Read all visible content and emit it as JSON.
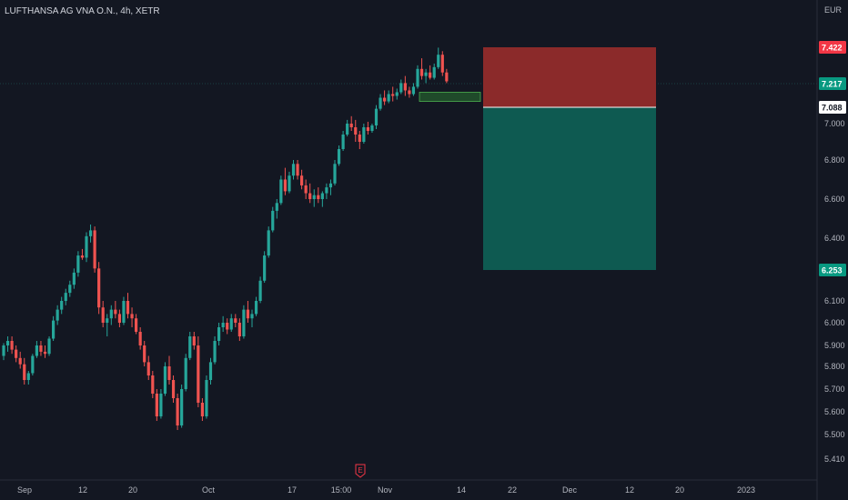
{
  "chart_data": {
    "type": "candlestick",
    "title": "LUFTHANSA AG VNA O.N., 4h, XETR",
    "currency": "EUR",
    "ylim": [
      5.32,
      7.6
    ],
    "y_ticks": [
      "5.410",
      "5.500",
      "5.600",
      "5.700",
      "5.800",
      "5.900",
      "6.000",
      "6.100",
      "6.400",
      "6.600",
      "6.800",
      "7.000"
    ],
    "y_tick_values": [
      5.41,
      5.5,
      5.6,
      5.7,
      5.8,
      5.9,
      6.0,
      6.1,
      6.4,
      6.6,
      6.8,
      7.0
    ],
    "x_ticks": [
      "Sep",
      "12",
      "20",
      "Oct",
      "17",
      "15:00",
      "Nov",
      "14",
      "22",
      "Dec",
      "12",
      "20",
      "2023"
    ],
    "x_tick_bars": [
      3,
      84,
      136,
      202,
      298,
      351,
      390,
      466,
      524,
      582,
      642,
      698,
      768
    ],
    "grid": false,
    "legend": "none",
    "price_labels": [
      {
        "value": 7.422,
        "text": "7.422",
        "color": "#f23645"
      },
      {
        "value": 7.217,
        "text": "7.217",
        "color": "#089981"
      },
      {
        "value": 7.088,
        "text": "7.088",
        "color": "#ffffff"
      },
      {
        "value": 6.253,
        "text": "6.253",
        "color": "#089981"
      }
    ],
    "current_price": 7.217,
    "position": {
      "type": "short",
      "entry": 7.088,
      "stop": 7.422,
      "target": 6.253,
      "start_bar": 494,
      "end_bar": 673,
      "loss_color": "#8b2a2a",
      "profit_color": "#0e5a51"
    },
    "zone": {
      "top": 7.17,
      "bottom": 7.12,
      "start_bar": 460,
      "end_bar": 492,
      "color": "#1f4a2a"
    },
    "colors": {
      "up": "#26a69a",
      "down": "#ef5350"
    },
    "event_marker": {
      "label": "E",
      "bar": 367,
      "color": "#f23645"
    },
    "candles": [
      [
        5.85,
        5.91,
        5.83,
        5.9
      ],
      [
        5.9,
        5.94,
        5.87,
        5.92
      ],
      [
        5.92,
        5.94,
        5.86,
        5.88
      ],
      [
        5.88,
        5.9,
        5.82,
        5.84
      ],
      [
        5.84,
        5.87,
        5.79,
        5.81
      ],
      [
        5.81,
        5.84,
        5.72,
        5.74
      ],
      [
        5.74,
        5.78,
        5.72,
        5.77
      ],
      [
        5.77,
        5.86,
        5.76,
        5.85
      ],
      [
        5.85,
        5.92,
        5.84,
        5.9
      ],
      [
        5.9,
        5.92,
        5.85,
        5.87
      ],
      [
        5.87,
        5.9,
        5.84,
        5.86
      ],
      [
        5.86,
        5.94,
        5.85,
        5.93
      ],
      [
        5.93,
        6.03,
        5.92,
        6.01
      ],
      [
        6.01,
        6.08,
        5.99,
        6.06
      ],
      [
        6.06,
        6.12,
        6.04,
        6.1
      ],
      [
        6.1,
        6.16,
        6.08,
        6.14
      ],
      [
        6.14,
        6.2,
        6.12,
        6.18
      ],
      [
        6.18,
        6.26,
        6.16,
        6.24
      ],
      [
        6.24,
        6.34,
        6.22,
        6.32
      ],
      [
        6.32,
        6.35,
        6.3,
        6.31
      ],
      [
        6.31,
        6.43,
        6.29,
        6.41
      ],
      [
        6.41,
        6.47,
        6.38,
        6.44
      ],
      [
        6.44,
        6.46,
        6.24,
        6.26
      ],
      [
        6.26,
        6.29,
        6.04,
        6.07
      ],
      [
        6.07,
        6.1,
        5.98,
        6.0
      ],
      [
        6.0,
        6.04,
        5.94,
        6.02
      ],
      [
        6.02,
        6.08,
        5.99,
        6.06
      ],
      [
        6.06,
        6.1,
        6.02,
        6.04
      ],
      [
        6.04,
        6.06,
        5.98,
        6.0
      ],
      [
        6.0,
        6.12,
        5.99,
        6.1
      ],
      [
        6.1,
        6.14,
        6.02,
        6.04
      ],
      [
        6.04,
        6.07,
        5.98,
        6.02
      ],
      [
        6.02,
        6.04,
        5.95,
        5.96
      ],
      [
        5.96,
        5.98,
        5.88,
        5.9
      ],
      [
        5.9,
        5.92,
        5.8,
        5.82
      ],
      [
        5.82,
        5.85,
        5.74,
        5.76
      ],
      [
        5.76,
        5.78,
        5.66,
        5.68
      ],
      [
        5.68,
        5.7,
        5.56,
        5.58
      ],
      [
        5.58,
        5.7,
        5.57,
        5.68
      ],
      [
        5.68,
        5.82,
        5.67,
        5.8
      ],
      [
        5.8,
        5.85,
        5.72,
        5.74
      ],
      [
        5.74,
        5.76,
        5.64,
        5.66
      ],
      [
        5.66,
        5.68,
        5.52,
        5.54
      ],
      [
        5.54,
        5.72,
        5.53,
        5.7
      ],
      [
        5.7,
        5.86,
        5.69,
        5.84
      ],
      [
        5.84,
        5.96,
        5.83,
        5.94
      ],
      [
        5.94,
        5.96,
        5.88,
        5.9
      ],
      [
        5.9,
        5.94,
        5.62,
        5.64
      ],
      [
        5.64,
        5.66,
        5.56,
        5.58
      ],
      [
        5.58,
        5.76,
        5.57,
        5.74
      ],
      [
        5.74,
        5.84,
        5.72,
        5.82
      ],
      [
        5.82,
        5.94,
        5.81,
        5.92
      ],
      [
        5.92,
        6.0,
        5.9,
        5.98
      ],
      [
        5.98,
        6.03,
        5.96,
        6.0
      ],
      [
        6.0,
        6.02,
        5.95,
        5.97
      ],
      [
        5.97,
        6.04,
        5.96,
        6.02
      ],
      [
        6.02,
        6.04,
        5.98,
        6.0
      ],
      [
        6.0,
        6.02,
        5.92,
        5.94
      ],
      [
        5.94,
        6.08,
        5.93,
        6.06
      ],
      [
        6.06,
        6.1,
        6.0,
        6.02
      ],
      [
        6.02,
        6.06,
        5.98,
        6.04
      ],
      [
        6.04,
        6.12,
        6.03,
        6.1
      ],
      [
        6.1,
        6.22,
        6.09,
        6.2
      ],
      [
        6.2,
        6.34,
        6.19,
        6.32
      ],
      [
        6.32,
        6.46,
        6.31,
        6.44
      ],
      [
        6.44,
        6.56,
        6.43,
        6.54
      ],
      [
        6.54,
        6.6,
        6.5,
        6.58
      ],
      [
        6.58,
        6.72,
        6.57,
        6.7
      ],
      [
        6.7,
        6.76,
        6.62,
        6.64
      ],
      [
        6.64,
        6.74,
        6.63,
        6.72
      ],
      [
        6.72,
        6.8,
        6.7,
        6.78
      ],
      [
        6.78,
        6.8,
        6.7,
        6.72
      ],
      [
        6.72,
        6.75,
        6.65,
        6.67
      ],
      [
        6.67,
        6.7,
        6.6,
        6.63
      ],
      [
        6.63,
        6.68,
        6.58,
        6.6
      ],
      [
        6.6,
        6.65,
        6.56,
        6.62
      ],
      [
        6.62,
        6.66,
        6.58,
        6.6
      ],
      [
        6.6,
        6.64,
        6.56,
        6.63
      ],
      [
        6.63,
        6.68,
        6.6,
        6.66
      ],
      [
        6.66,
        6.7,
        6.62,
        6.68
      ],
      [
        6.68,
        6.8,
        6.67,
        6.78
      ],
      [
        6.78,
        6.88,
        6.77,
        6.86
      ],
      [
        6.86,
        6.96,
        6.85,
        6.94
      ],
      [
        6.94,
        7.02,
        6.93,
        7.0
      ],
      [
        7.0,
        7.04,
        6.96,
        6.98
      ],
      [
        6.98,
        7.02,
        6.9,
        6.94
      ],
      [
        6.94,
        6.96,
        6.86,
        6.9
      ],
      [
        6.9,
        7.0,
        6.89,
        6.98
      ],
      [
        6.98,
        7.01,
        6.94,
        6.96
      ],
      [
        6.96,
        7.0,
        6.95,
        6.99
      ],
      [
        6.99,
        7.1,
        6.97,
        7.08
      ],
      [
        7.08,
        7.16,
        7.07,
        7.14
      ],
      [
        7.14,
        7.18,
        7.1,
        7.12
      ],
      [
        7.12,
        7.18,
        7.11,
        7.16
      ],
      [
        7.16,
        7.2,
        7.12,
        7.15
      ],
      [
        7.15,
        7.19,
        7.13,
        7.17
      ],
      [
        7.17,
        7.24,
        7.16,
        7.22
      ],
      [
        7.22,
        7.26,
        7.15,
        7.18
      ],
      [
        7.18,
        7.2,
        7.14,
        7.16
      ],
      [
        7.16,
        7.22,
        7.15,
        7.2
      ],
      [
        7.2,
        7.32,
        7.19,
        7.3
      ],
      [
        7.3,
        7.36,
        7.24,
        7.26
      ],
      [
        7.26,
        7.3,
        7.22,
        7.28
      ],
      [
        7.28,
        7.32,
        7.24,
        7.25
      ],
      [
        7.25,
        7.33,
        7.24,
        7.31
      ],
      [
        7.31,
        7.42,
        7.3,
        7.38
      ],
      [
        7.38,
        7.4,
        7.26,
        7.28
      ],
      [
        7.28,
        7.3,
        7.22,
        7.23
      ]
    ]
  }
}
